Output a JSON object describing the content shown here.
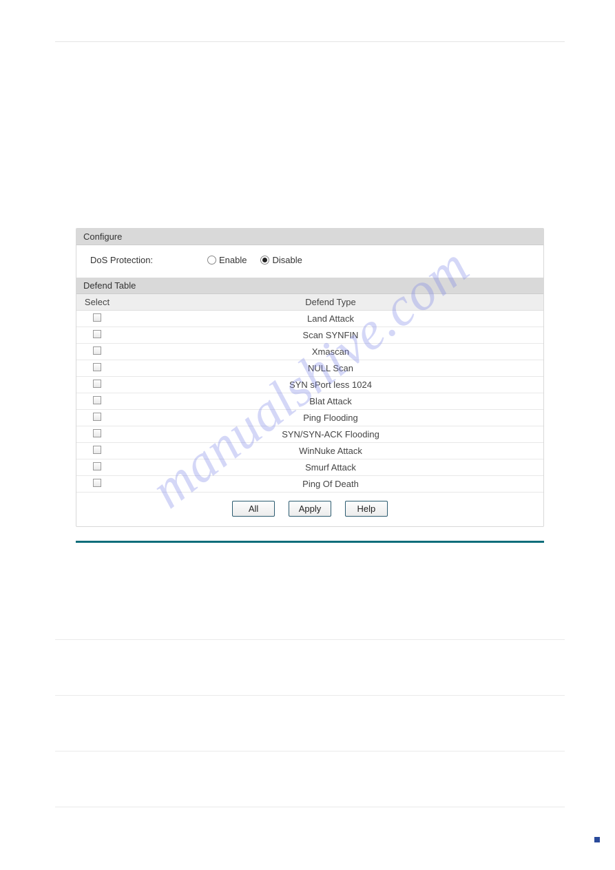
{
  "watermark_text": "manualshive.com",
  "configure": {
    "header": "Configure",
    "label": "DoS Protection:",
    "enable_label": "Enable",
    "disable_label": "Disable",
    "selected": "disable"
  },
  "defend_table": {
    "header": "Defend Table",
    "columns": {
      "select": "Select",
      "type": "Defend Type"
    },
    "rows": [
      {
        "type": "Land Attack"
      },
      {
        "type": "Scan SYNFIN"
      },
      {
        "type": "Xmascan"
      },
      {
        "type": "NULL Scan"
      },
      {
        "type": "SYN sPort less 1024"
      },
      {
        "type": "Blat Attack"
      },
      {
        "type": "Ping Flooding"
      },
      {
        "type": "SYN/SYN-ACK Flooding"
      },
      {
        "type": "WinNuke Attack"
      },
      {
        "type": "Smurf Attack"
      },
      {
        "type": "Ping Of Death"
      }
    ]
  },
  "buttons": {
    "all": "All",
    "apply": "Apply",
    "help": "Help"
  },
  "colors": {
    "section_header_bg": "#d9d9d9",
    "table_header_bg": "#eeeeee",
    "divider": "#0d6d7a",
    "border": "#d8d8d8",
    "button_border": "#2a5a6f",
    "watermark": "rgba(120,130,230,0.32)"
  }
}
